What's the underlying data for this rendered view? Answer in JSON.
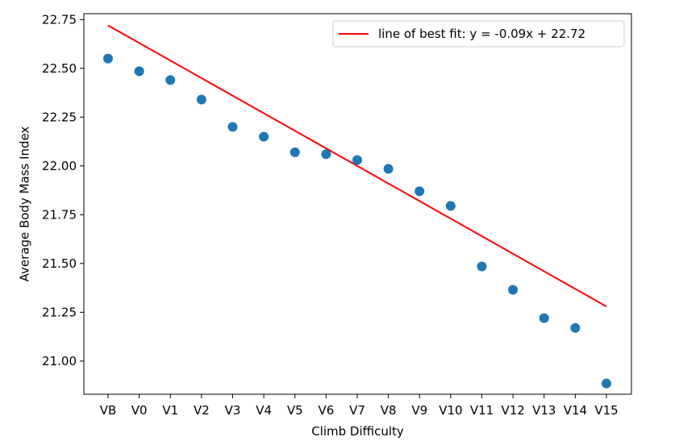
{
  "chart_data": {
    "type": "scatter",
    "categories": [
      "VB",
      "V0",
      "V1",
      "V2",
      "V3",
      "V4",
      "V5",
      "V6",
      "V7",
      "V8",
      "V9",
      "V10",
      "V11",
      "V12",
      "V13",
      "V14",
      "V15"
    ],
    "values": [
      22.55,
      22.485,
      22.44,
      22.34,
      22.2,
      22.15,
      22.07,
      22.06,
      22.03,
      21.985,
      21.87,
      21.795,
      21.485,
      21.365,
      21.22,
      21.17,
      20.885
    ],
    "xlabel": "Climb Difficulty",
    "ylabel": "Average Body Mass Index",
    "ylim": [
      20.83,
      22.78
    ],
    "yticks": [
      "21.00",
      "21.25",
      "21.50",
      "21.75",
      "22.00",
      "22.25",
      "22.50",
      "22.75"
    ],
    "fit_line": {
      "label": "line of best fit: y = -0.09x + 22.72",
      "slope": -0.09,
      "intercept": 22.72,
      "color": "#ff0000"
    },
    "marker_color": "#1f77b4",
    "grid": false,
    "legend_position": "top-right"
  }
}
